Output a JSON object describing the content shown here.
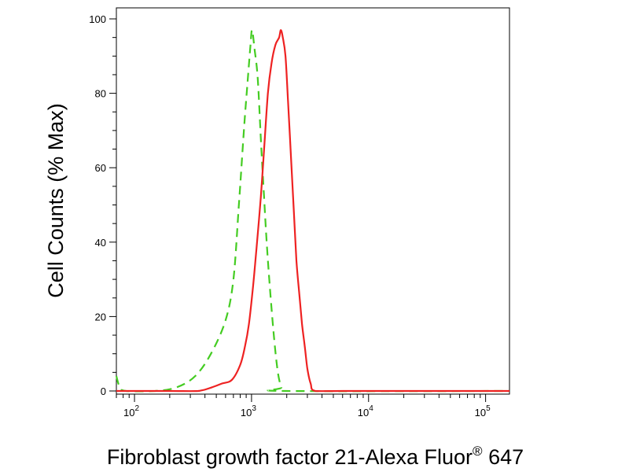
{
  "chart_data": {
    "type": "histogram",
    "xscale": "log",
    "xlim": [
      70,
      160000
    ],
    "ylim": [
      0,
      100
    ],
    "grid": false,
    "xlabel": "Fibroblast growth factor 21-Alexa Fluor",
    "xlabel_superscript": "®",
    "xlabel_suffix": " 647",
    "ylabel": "Cell Counts (% Max)",
    "y_ticks": [
      0,
      20,
      40,
      60,
      80,
      100
    ],
    "x_ticks": [
      {
        "value": 100,
        "base": "10",
        "exp": "2"
      },
      {
        "value": 1000,
        "base": "10",
        "exp": "3"
      },
      {
        "value": 10000,
        "base": "10",
        "exp": "4"
      },
      {
        "value": 100000,
        "base": "10",
        "exp": "5"
      }
    ],
    "series": [
      {
        "color": "#44cc22",
        "style": "dashed",
        "points": [
          [
            70,
            4
          ],
          [
            75,
            1
          ],
          [
            85,
            0
          ],
          [
            150,
            0
          ],
          [
            230,
            1
          ],
          [
            330,
            4
          ],
          [
            450,
            10
          ],
          [
            600,
            19
          ],
          [
            700,
            30
          ],
          [
            780,
            50
          ],
          [
            860,
            70
          ],
          [
            920,
            82
          ],
          [
            980,
            93
          ],
          [
            1010,
            97
          ],
          [
            1060,
            92
          ],
          [
            1130,
            84
          ],
          [
            1200,
            68
          ],
          [
            1280,
            52
          ],
          [
            1360,
            38
          ],
          [
            1450,
            26
          ],
          [
            1560,
            14
          ],
          [
            1680,
            5
          ],
          [
            1800,
            1
          ],
          [
            1950,
            0
          ],
          [
            160000,
            0
          ]
        ]
      },
      {
        "color": "#ee2222",
        "style": "solid",
        "points": [
          [
            70,
            0
          ],
          [
            200,
            0
          ],
          [
            350,
            0
          ],
          [
            460,
            1
          ],
          [
            560,
            2
          ],
          [
            680,
            3
          ],
          [
            800,
            7
          ],
          [
            880,
            12
          ],
          [
            950,
            18
          ],
          [
            1030,
            28
          ],
          [
            1100,
            38
          ],
          [
            1200,
            52
          ],
          [
            1280,
            65
          ],
          [
            1380,
            80
          ],
          [
            1480,
            88
          ],
          [
            1600,
            93
          ],
          [
            1720,
            95
          ],
          [
            1780,
            97
          ],
          [
            1850,
            95
          ],
          [
            1950,
            90
          ],
          [
            2050,
            78
          ],
          [
            2180,
            62
          ],
          [
            2300,
            48
          ],
          [
            2420,
            35
          ],
          [
            2560,
            26
          ],
          [
            2700,
            18
          ],
          [
            2850,
            12
          ],
          [
            3000,
            6
          ],
          [
            3200,
            2
          ],
          [
            3500,
            0
          ],
          [
            6000,
            0
          ],
          [
            20000,
            0
          ],
          [
            160000,
            0
          ]
        ]
      }
    ]
  }
}
